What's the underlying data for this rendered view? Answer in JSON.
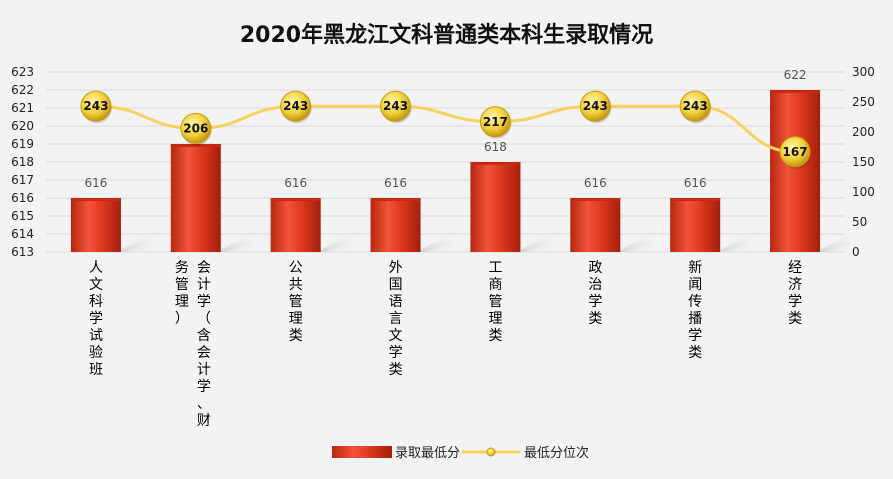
{
  "chart_data": {
    "type": "bar",
    "title": "2020年黑龙江文科普通类本科生录取情况",
    "categories": [
      [
        "人文科学试验班"
      ],
      [
        "会计学（含会计学、财",
        "务管理）"
      ],
      [
        "公共管理类"
      ],
      [
        "外国语言文学类"
      ],
      [
        "工商管理类"
      ],
      [
        "政治学类"
      ],
      [
        "新闻传播学类"
      ],
      [
        "经济学类"
      ]
    ],
    "series": [
      {
        "name": "录取最低分",
        "type": "bar",
        "axis": "left",
        "values": [
          616,
          619,
          616,
          616,
          618,
          616,
          616,
          622
        ],
        "color": "#d8361c"
      },
      {
        "name": "最低分位次",
        "type": "line",
        "axis": "right",
        "values": [
          243,
          206,
          243,
          243,
          217,
          243,
          243,
          167
        ],
        "color": "#f6d25e"
      }
    ],
    "y_left": {
      "min": 613,
      "max": 623,
      "ticks": [
        613,
        614,
        615,
        616,
        617,
        618,
        619,
        620,
        621,
        622,
        623
      ]
    },
    "y_right": {
      "min": 0,
      "max": 300,
      "ticks": [
        0,
        50,
        100,
        150,
        200,
        250,
        300
      ]
    },
    "legend": "bottom",
    "grid": true
  }
}
